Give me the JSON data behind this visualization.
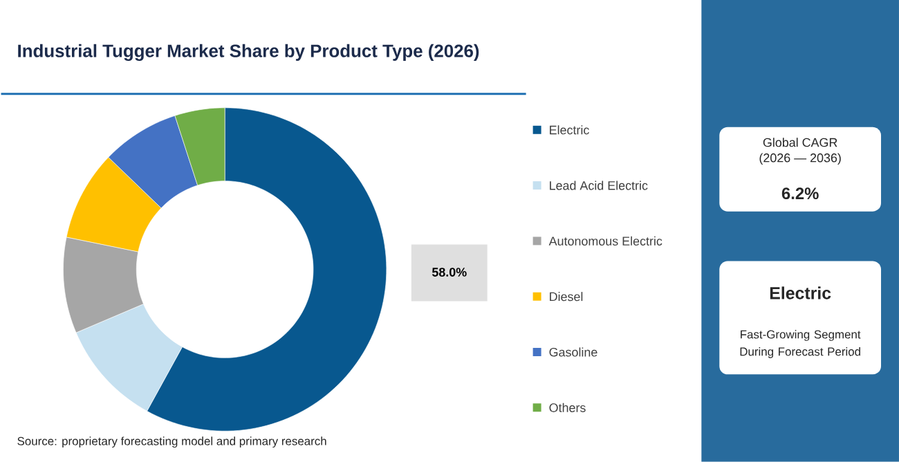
{
  "chart_data": {
    "type": "donut",
    "title": "Industrial Tugger Market Share by Product Type (2026)",
    "categories": [
      "Electric",
      "Lead Acid Electric",
      "Autonomous Electric",
      "Diesel",
      "Gasoline",
      "Others"
    ],
    "values": [
      58.0,
      10.6,
      9.6,
      9.0,
      7.8,
      5.0
    ],
    "colors": [
      "#08588f",
      "#c5e0f0",
      "#a6a6a6",
      "#ffc000",
      "#4472c4",
      "#70ad47"
    ],
    "value_labels": [
      "58.0%",
      null,
      null,
      null,
      null,
      null
    ],
    "legend": "right",
    "annotations": [
      "Source: proprietary forecasting model and primary research",
      "Global CAGR",
      "(2026 — 2036)",
      "6.2%",
      "Electric",
      "Fast-Growing Segment During Forecast Period"
    ]
  }
}
